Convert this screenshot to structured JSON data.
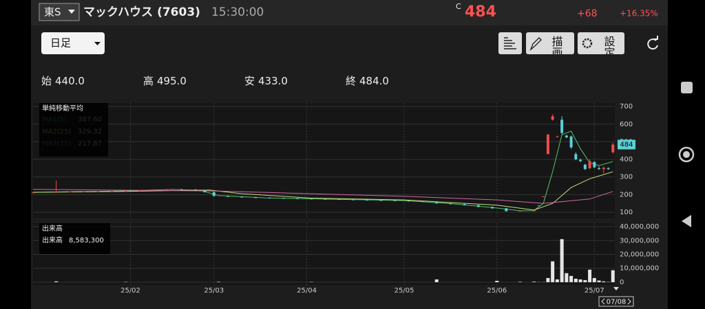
{
  "header": {
    "market": "東S",
    "name": "マックハウス (7603)",
    "time": "15:30:00",
    "price_flag": "C",
    "price": "484",
    "change": "+68",
    "change_pct": "+16.35%"
  },
  "toolbar": {
    "period": "日足",
    "draw": "描画",
    "settings": "設定"
  },
  "ohlc": [
    {
      "label": "始",
      "value": "440.0"
    },
    {
      "label": "高",
      "value": "495.0"
    },
    {
      "label": "安",
      "value": "433.0"
    },
    {
      "label": "終",
      "value": "484.0"
    }
  ],
  "cursor_date": "07/08",
  "chart_data": [
    {
      "type": "candlestick",
      "legend_title": "単純移動平均",
      "up_color": "#f14b4b",
      "down_color": "#5ccfd6",
      "grid": true,
      "x": [
        0,
        5,
        8,
        11,
        14,
        17,
        20,
        23,
        26,
        29,
        32,
        35,
        37,
        39,
        42,
        45,
        48,
        51,
        54,
        57,
        60,
        63,
        66,
        69,
        72,
        75,
        78,
        81,
        84,
        87,
        90,
        93,
        96,
        99,
        102,
        105,
        108,
        109,
        110,
        111,
        112,
        113,
        114,
        115,
        116,
        117,
        118,
        119,
        120,
        121,
        122,
        123,
        124,
        125
      ],
      "open": [
        210,
        212,
        215,
        217,
        218,
        219,
        220,
        222,
        224,
        228,
        230,
        229,
        226,
        214,
        192,
        188,
        184,
        182,
        180,
        178,
        177,
        175,
        174,
        172,
        170,
        168,
        167,
        165,
        164,
        160,
        150,
        146,
        140,
        130,
        122,
        106,
        108,
        140,
        190,
        430,
        625,
        530,
        625,
        535,
        530,
        430,
        398,
        370,
        350,
        385,
        350,
        345,
        350,
        440
      ],
      "high": [
        214,
        280,
        218,
        220,
        221,
        222,
        224,
        226,
        230,
        232,
        233,
        231,
        227,
        216,
        195,
        190,
        187,
        185,
        183,
        181,
        180,
        178,
        177,
        175,
        173,
        171,
        170,
        168,
        166,
        162,
        153,
        148,
        142,
        132,
        124,
        110,
        112,
        140,
        190,
        545,
        655,
        535,
        645,
        540,
        535,
        440,
        405,
        375,
        400,
        390,
        360,
        360,
        355,
        495
      ],
      "low": [
        208,
        210,
        212,
        214,
        215,
        216,
        217,
        219,
        221,
        225,
        226,
        224,
        212,
        190,
        186,
        182,
        180,
        178,
        176,
        175,
        173,
        172,
        170,
        168,
        166,
        165,
        163,
        162,
        158,
        148,
        144,
        138,
        128,
        120,
        104,
        103,
        104,
        140,
        190,
        430,
        620,
        525,
        540,
        520,
        460,
        395,
        385,
        340,
        345,
        350,
        340,
        320,
        340,
        433
      ],
      "close": [
        212,
        215,
        217,
        218,
        219,
        220,
        222,
        224,
        228,
        230,
        229,
        226,
        214,
        192,
        188,
        184,
        182,
        180,
        178,
        177,
        175,
        174,
        172,
        170,
        168,
        167,
        165,
        164,
        160,
        150,
        146,
        140,
        130,
        122,
        106,
        108,
        110,
        140,
        190,
        540,
        645,
        530,
        550,
        525,
        468,
        400,
        390,
        345,
        390,
        355,
        345,
        352,
        345,
        484
      ],
      "series": [
        {
          "name": "MA1(5)",
          "color": "#52c46a",
          "legend_value": "387.60",
          "x": [
            0,
            10,
            20,
            30,
            36,
            40,
            50,
            60,
            70,
            80,
            90,
            100,
            105,
            108,
            110,
            112,
            114,
            116,
            118,
            120,
            122,
            125
          ],
          "values": [
            212,
            217,
            221,
            229,
            224,
            195,
            181,
            176,
            171,
            166,
            149,
            124,
            108,
            109,
            150,
            330,
            540,
            560,
            460,
            380,
            365,
            387.6
          ]
        },
        {
          "name": "MA2(25)",
          "color": "#c8e07c",
          "legend_value": "329.32",
          "x": [
            0,
            20,
            38,
            45,
            60,
            80,
            100,
            108,
            112,
            116,
            120,
            125
          ],
          "values": [
            213,
            218,
            226,
            205,
            180,
            170,
            140,
            112,
            150,
            240,
            290,
            329.32
          ]
        },
        {
          "name": "MA3(75)",
          "color": "#d06aa8",
          "legend_value": "217.87",
          "x": [
            0,
            20,
            40,
            60,
            80,
            100,
            110,
            120,
            125
          ],
          "values": [
            230,
            225,
            220,
            205,
            190,
            170,
            150,
            175,
            217.87
          ]
        }
      ],
      "xlim": [
        0,
        126
      ],
      "ylim": [
        65,
        720
      ],
      "yticks": [
        100,
        200,
        300,
        400,
        500,
        600,
        700
      ],
      "xticks": [
        {
          "value": 21,
          "label": "25/02"
        },
        {
          "value": 39,
          "label": "25/03"
        },
        {
          "value": 59,
          "label": "25/04"
        },
        {
          "value": 80,
          "label": "25/05"
        },
        {
          "value": 100,
          "label": "25/06"
        },
        {
          "value": 121,
          "label": "25/07"
        }
      ]
    },
    {
      "type": "bar",
      "title": "出来高",
      "legend_name": "出来高",
      "legend_value": "8,583,300",
      "color": "#e6e6e6",
      "grid": true,
      "x": [
        5,
        20,
        40,
        60,
        87,
        100,
        105,
        108,
        109,
        110,
        111,
        112,
        113,
        114,
        115,
        116,
        117,
        118,
        119,
        120,
        121,
        122,
        123,
        124,
        125
      ],
      "values": [
        600000,
        200000,
        300000,
        200000,
        2000000,
        1000000,
        300000,
        400000,
        100000,
        100000,
        3000000,
        15000000,
        2000000,
        31000000,
        6500000,
        4500000,
        2500000,
        2000000,
        1500000,
        9000000,
        3000000,
        1200000,
        600000,
        200000,
        8583300
      ],
      "xlim": [
        0,
        126
      ],
      "ylim": [
        -2000000,
        42500000
      ],
      "yticks": [
        0,
        {
          "value": 10000000,
          "label": "10,000,000"
        },
        {
          "value": 20000000,
          "label": "20,000,000"
        },
        {
          "value": 30000000,
          "label": "30,000,000"
        },
        {
          "value": 40000000,
          "label": "40,000,000"
        }
      ]
    }
  ]
}
